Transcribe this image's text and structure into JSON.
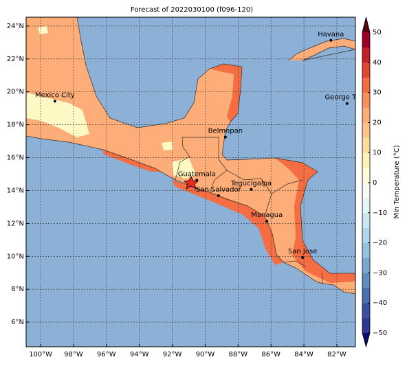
{
  "title": "Forecast of 2022030100 (f096-120)",
  "map": {
    "xlim": [
      -100.88,
      -80.87
    ],
    "ylim": [
      4.5,
      24.54
    ],
    "grid": true,
    "ocean_color": "#8cb0d6",
    "xticks": [
      {
        "value": -100,
        "label": "100°W"
      },
      {
        "value": -98,
        "label": "98°W"
      },
      {
        "value": -96,
        "label": "96°W"
      },
      {
        "value": -94,
        "label": "94°W"
      },
      {
        "value": -92,
        "label": "92°W"
      },
      {
        "value": -90,
        "label": "90°W"
      },
      {
        "value": -88,
        "label": "88°W"
      },
      {
        "value": -86,
        "label": "86°W"
      },
      {
        "value": -84,
        "label": "84°W"
      },
      {
        "value": -82,
        "label": "82°W"
      }
    ],
    "yticks": [
      {
        "value": 6,
        "label": "6°N"
      },
      {
        "value": 8,
        "label": "8°N"
      },
      {
        "value": 10,
        "label": "10°N"
      },
      {
        "value": 12,
        "label": "12°N"
      },
      {
        "value": 14,
        "label": "14°N"
      },
      {
        "value": 16,
        "label": "16°N"
      },
      {
        "value": 18,
        "label": "18°N"
      },
      {
        "value": 20,
        "label": "20°N"
      },
      {
        "value": 22,
        "label": "22°N"
      },
      {
        "value": 24,
        "label": "24°N"
      }
    ],
    "cities": [
      {
        "name": "Havana",
        "lon": -82.36,
        "lat": 23.13
      },
      {
        "name": "Mexico City",
        "lon": -99.13,
        "lat": 19.43
      },
      {
        "name": "George Town",
        "lon": -81.38,
        "lat": 19.29
      },
      {
        "name": "Belmopan",
        "lon": -88.77,
        "lat": 17.25
      },
      {
        "name": "Guatemala",
        "lon": -90.51,
        "lat": 14.63
      },
      {
        "name": "San Salvador",
        "lon": -89.19,
        "lat": 13.69
      },
      {
        "name": "Tegucigalpa",
        "lon": -87.2,
        "lat": 14.07
      },
      {
        "name": "Managua",
        "lon": -86.25,
        "lat": 12.13
      },
      {
        "name": "San Jose",
        "lon": -84.08,
        "lat": 9.93
      }
    ]
  },
  "colorbar": {
    "label": "Min Temperature (°C)",
    "range": [
      -50,
      50
    ],
    "under_color": "#0a0a6e",
    "over_color": "#5a0010",
    "colors": [
      "#2e3792",
      "#3a4fa0",
      "#4a6fb0",
      "#5e8cc0",
      "#78a9d0",
      "#94c3df",
      "#b0d8ea",
      "#cbe8f2",
      "#e2f4f7",
      "#f6fbf3",
      "#fffbd8",
      "#fff1b4",
      "#fedc9a",
      "#fdc388",
      "#fdad78",
      "#f98e5e",
      "#f46d43",
      "#e04630",
      "#c21f27",
      "#9c0026"
    ],
    "ticks": [
      {
        "value": -50,
        "label": "−50"
      },
      {
        "value": -40,
        "label": "−40"
      },
      {
        "value": -30,
        "label": "−30"
      },
      {
        "value": -20,
        "label": "−20"
      },
      {
        "value": -10,
        "label": "−10"
      },
      0,
      10,
      20,
      30,
      40,
      50
    ]
  }
}
